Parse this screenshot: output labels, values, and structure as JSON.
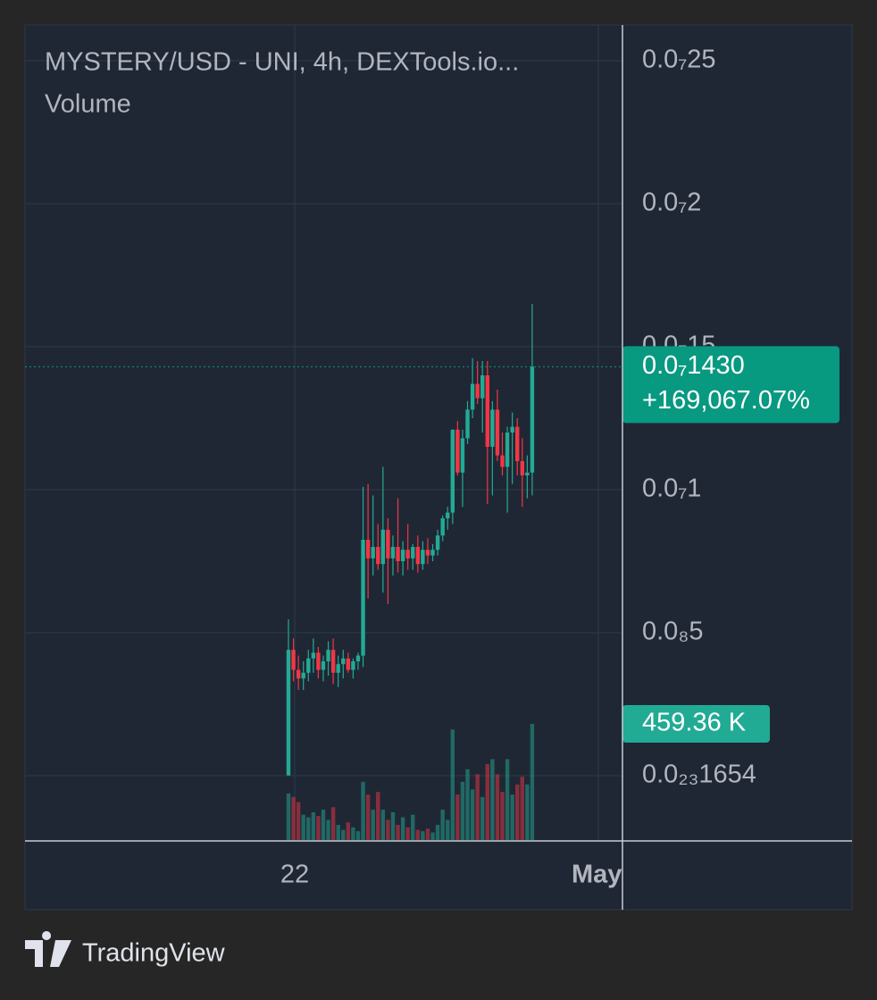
{
  "chart_data": {
    "type": "candlestick",
    "title": "MYSTERY/USD - UNI, 4h, DEXTools.io...",
    "subtitle": "Volume",
    "x_labels": [
      "22",
      "May"
    ],
    "ylim": [
      -2.25e-09,
      2.625e-08
    ],
    "yticks": [
      {
        "value": 2.5e-08,
        "label": "0.0₇25"
      },
      {
        "value": 2e-08,
        "label": "0.0₇2"
      },
      {
        "value": 1.5e-08,
        "label": "0.0₇15"
      },
      {
        "value": 1e-08,
        "label": "0.0₇1"
      },
      {
        "value": 5e-09,
        "label": "0.0₈5"
      },
      {
        "value": 1.654e-24,
        "label": "0.0₂₃1654"
      }
    ],
    "grid": true,
    "up_color": "#22ab94",
    "down_color": "#f23645",
    "open": [
      8.5e-12,
      4.4e-09,
      3.7e-09,
      3.4e-09,
      3.6e-09,
      4.1e-09,
      4.3e-09,
      3.7e-09,
      4e-09,
      4.4e-09,
      3.6e-09,
      3.9e-09,
      4.1e-09,
      3.7e-09,
      4e-09,
      4.2e-09,
      8.25e-09,
      7.6e-09,
      8e-09,
      7.4e-09,
      8.6e-09,
      7.6e-09,
      8e-09,
      7.5e-09,
      7.9e-09,
      7.6e-09,
      8e-09,
      7.4e-09,
      7.9e-09,
      7.7e-09,
      7.9e-09,
      8.4e-09,
      9e-09,
      9.2e-09,
      1.21e-08,
      1.06e-08,
      1.18e-08,
      1.28e-08,
      1.37e-08,
      1.32e-08,
      1.4e-08,
      1.15e-08,
      1.28e-08,
      1.12e-08,
      1.08e-08,
      1.2e-08,
      1.22e-08,
      1.1e-08,
      1.05e-08,
      1.06e-08
    ],
    "high": [
      5.47e-09,
      4.8e-09,
      4.2e-09,
      4e-09,
      4.4e-09,
      4.8e-09,
      4.5e-09,
      4.2e-09,
      4.7e-09,
      4.8e-09,
      4.2e-09,
      4.4e-09,
      4.3e-09,
      4.1e-09,
      4.3e-09,
      1.01e-08,
      1.02e-08,
      9.8e-09,
      8.8e-09,
      1.08e-08,
      9e-09,
      8.4e-09,
      9.7e-09,
      8.2e-09,
      8.8e-09,
      8.1e-09,
      8.4e-09,
      8.2e-09,
      8.3e-09,
      8.1e-09,
      8.6e-09,
      9.1e-09,
      9.4e-09,
      1.21e-08,
      1.24e-08,
      1.21e-08,
      1.31e-08,
      1.46e-08,
      1.45e-08,
      1.45e-08,
      1.45e-08,
      1.31e-08,
      1.35e-08,
      1.2e-08,
      1.22e-08,
      1.27e-08,
      1.25e-08,
      1.18e-08,
      1.12e-08,
      1.65e-08
    ],
    "low": [
      8.5e-12,
      3.3e-09,
      3e-09,
      3e-09,
      3.3e-09,
      3.6e-09,
      3.4e-09,
      3.3e-09,
      3.5e-09,
      3.2e-09,
      3.1e-09,
      3.4e-09,
      3.6e-09,
      3.4e-09,
      3.7e-09,
      3.8e-09,
      6.2e-09,
      7e-09,
      7.2e-09,
      6.4e-09,
      6e-09,
      7e-09,
      7.1e-09,
      7e-09,
      7.2e-09,
      7.2e-09,
      7.1e-09,
      7.2e-09,
      7.4e-09,
      7.5e-09,
      7.7e-09,
      8.2e-09,
      8.6e-09,
      8.8e-09,
      1.05e-08,
      9.4e-09,
      1.16e-08,
      1.25e-08,
      1.3e-08,
      1.2e-08,
      9.5e-09,
      9.8e-09,
      1.1e-08,
      1.05e-08,
      9.2e-09,
      1.02e-08,
      1.05e-08,
      9.4e-09,
      9.7e-09,
      9.8e-09
    ],
    "close": [
      4.4e-09,
      3.7e-09,
      3.4e-09,
      3.6e-09,
      4.1e-09,
      4.3e-09,
      3.7e-09,
      4e-09,
      4.4e-09,
      3.6e-09,
      3.9e-09,
      4.1e-09,
      3.7e-09,
      4e-09,
      4.2e-09,
      8.25e-09,
      7.6e-09,
      8e-09,
      7.4e-09,
      8.6e-09,
      7.6e-09,
      8e-09,
      7.5e-09,
      7.9e-09,
      7.6e-09,
      8e-09,
      7.4e-09,
      7.9e-09,
      7.7e-09,
      7.9e-09,
      8.4e-09,
      9e-09,
      9.2e-09,
      1.21e-08,
      1.06e-08,
      1.18e-08,
      1.28e-08,
      1.37e-08,
      1.32e-08,
      1.4e-08,
      1.15e-08,
      1.28e-08,
      1.12e-08,
      1.08e-08,
      1.2e-08,
      1.22e-08,
      1.1e-08,
      1.05e-08,
      1.06e-08,
      1.43e-08
    ],
    "volumes": [
      184000,
      170000,
      150000,
      100000,
      90000,
      110000,
      95000,
      120000,
      80000,
      130000,
      60000,
      40000,
      70000,
      50000,
      35000,
      230000,
      180000,
      120000,
      190000,
      120000,
      80000,
      110000,
      60000,
      90000,
      50000,
      100000,
      40000,
      35000,
      45000,
      30000,
      60000,
      120000,
      80000,
      437000,
      180000,
      230000,
      280000,
      200000,
      260000,
      170000,
      300000,
      320000,
      260000,
      190000,
      320000,
      180000,
      220000,
      250000,
      220000,
      459360
    ],
    "last_price": {
      "value": 1.43e-08,
      "label": "0.0₇1430"
    },
    "change": "+169,067.07%",
    "last_volume": {
      "value": 459360,
      "label": "459.36 K"
    }
  },
  "brand": "TradingView"
}
